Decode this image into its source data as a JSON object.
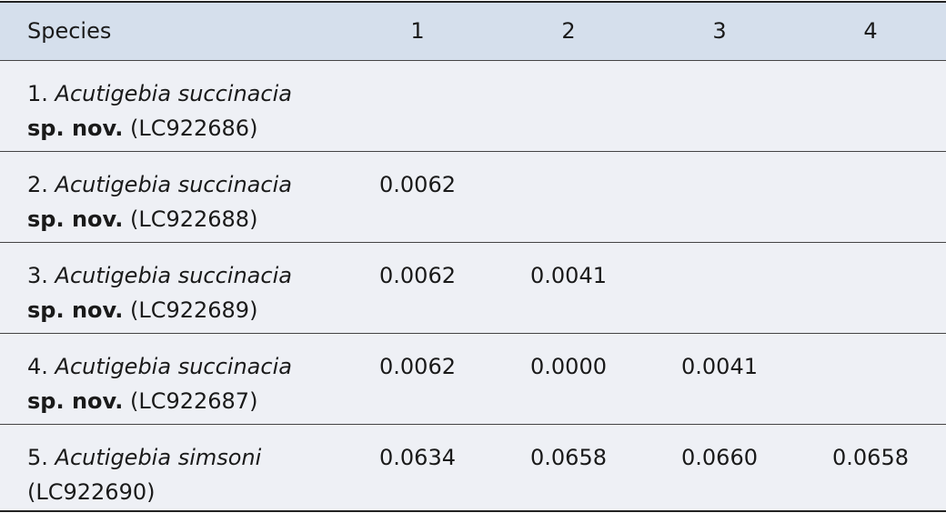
{
  "table": {
    "header": [
      "Species",
      "1",
      "2",
      "3",
      "4"
    ],
    "rows": [
      {
        "species": {
          "number": "1.",
          "name": "Acutigebia succinacia",
          "qualifier": "sp. nov.",
          "accession": "(LC922686)"
        },
        "distances": [
          null,
          null,
          null,
          null
        ]
      },
      {
        "species": {
          "number": "2.",
          "name": "Acutigebia succinacia",
          "qualifier": "sp. nov.",
          "accession": "(LC922688)"
        },
        "distances": [
          "0.0062",
          null,
          null,
          null
        ]
      },
      {
        "species": {
          "number": "3.",
          "name": "Acutigebia succinacia",
          "qualifier": "sp. nov.",
          "accession": "(LC922689)"
        },
        "distances": [
          "0.0062",
          "0.0041",
          null,
          null
        ]
      },
      {
        "species": {
          "number": "4.",
          "name": "Acutigebia succinacia",
          "qualifier": "sp. nov.",
          "accession": "(LC922687)"
        },
        "distances": [
          "0.0062",
          "0.0000",
          "0.0041",
          null
        ]
      },
      {
        "species": {
          "number": "5.",
          "name": "Acutigebia simsoni",
          "qualifier": null,
          "accession": "(LC922690)"
        },
        "distances": [
          "0.0634",
          "0.0658",
          "0.0660",
          "0.0658"
        ]
      }
    ]
  }
}
